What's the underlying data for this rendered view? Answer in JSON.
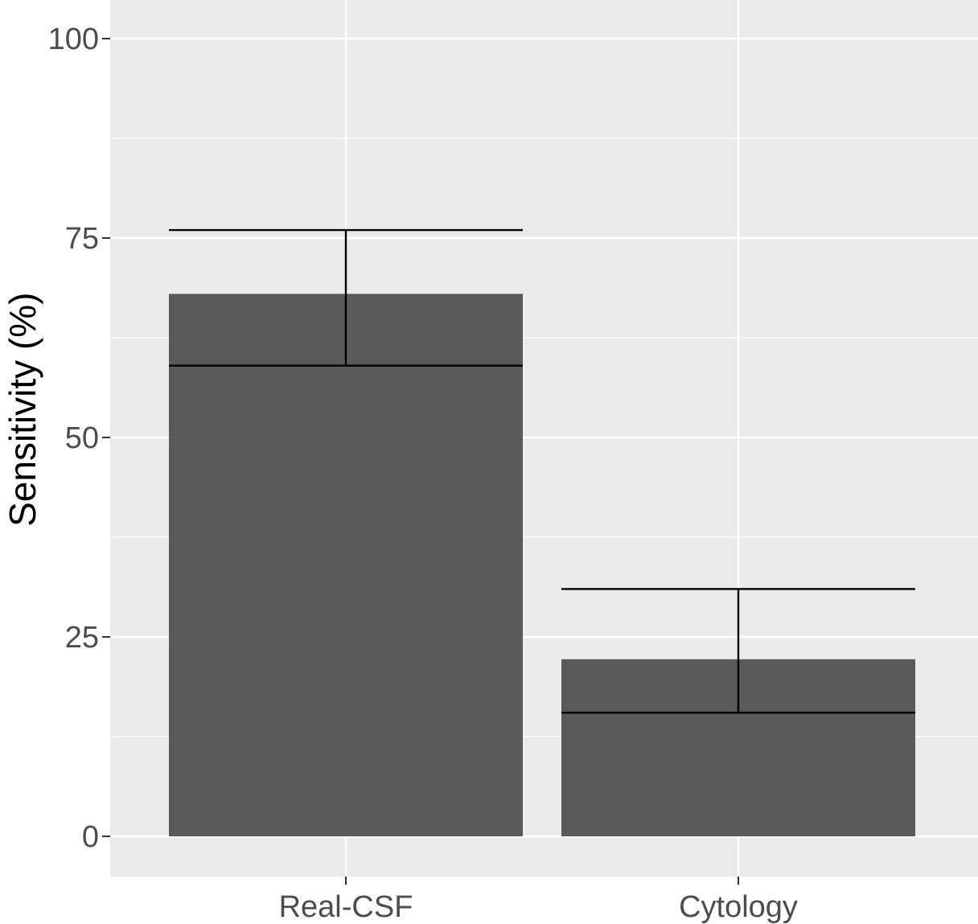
{
  "chart_data": {
    "type": "bar",
    "title": "",
    "xlabel": "",
    "ylabel": "Sensitivity (%)",
    "categories": [
      "Real-CSF",
      "Cytology"
    ],
    "values": [
      68,
      22.2
    ],
    "error_low": [
      59,
      15.5
    ],
    "error_high": [
      76,
      31
    ],
    "ylim": [
      0,
      105
    ],
    "yticks": [
      0,
      25,
      50,
      75,
      100
    ],
    "grid": true,
    "legend": "none",
    "colors": {
      "bar": "#595959",
      "panel": "#ebebeb",
      "grid": "#ffffff",
      "errorbar": "#000000"
    }
  }
}
